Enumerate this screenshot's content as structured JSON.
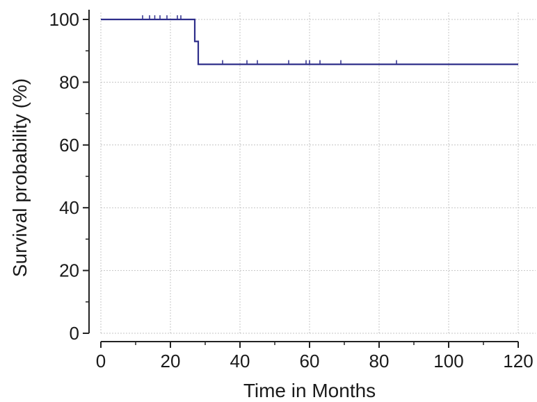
{
  "chart_data": {
    "type": "line",
    "subtype": "kaplan-meier",
    "title": "",
    "xlabel": "Time in Months",
    "ylabel": "Survival probability (%)",
    "xlim": [
      0,
      120
    ],
    "ylim": [
      0,
      100
    ],
    "x_major_ticks": [
      0,
      20,
      40,
      60,
      80,
      100,
      120
    ],
    "y_major_ticks": [
      0,
      20,
      40,
      60,
      80,
      100
    ],
    "x_minor_ticks": [
      10,
      30,
      50,
      70,
      90,
      110
    ],
    "y_minor_ticks": [
      10,
      30,
      50,
      70,
      90
    ],
    "grid": true,
    "line_color": "#2e2e8a",
    "series": [
      {
        "steps": [
          {
            "x": 0,
            "y": 100
          },
          {
            "x": 27,
            "y": 93
          },
          {
            "x": 28,
            "y": 85.7
          },
          {
            "x": 120,
            "y": 85.7
          }
        ],
        "censored": [
          {
            "x": 12,
            "y": 100
          },
          {
            "x": 14,
            "y": 100
          },
          {
            "x": 15.5,
            "y": 100
          },
          {
            "x": 17,
            "y": 100
          },
          {
            "x": 19,
            "y": 100
          },
          {
            "x": 22,
            "y": 100
          },
          {
            "x": 23,
            "y": 100
          },
          {
            "x": 35,
            "y": 85.7
          },
          {
            "x": 42,
            "y": 85.7
          },
          {
            "x": 45,
            "y": 85.7
          },
          {
            "x": 54,
            "y": 85.7
          },
          {
            "x": 59,
            "y": 85.7
          },
          {
            "x": 60,
            "y": 85.7
          },
          {
            "x": 63,
            "y": 85.7
          },
          {
            "x": 69,
            "y": 85.7
          },
          {
            "x": 85,
            "y": 85.7
          }
        ]
      }
    ]
  }
}
